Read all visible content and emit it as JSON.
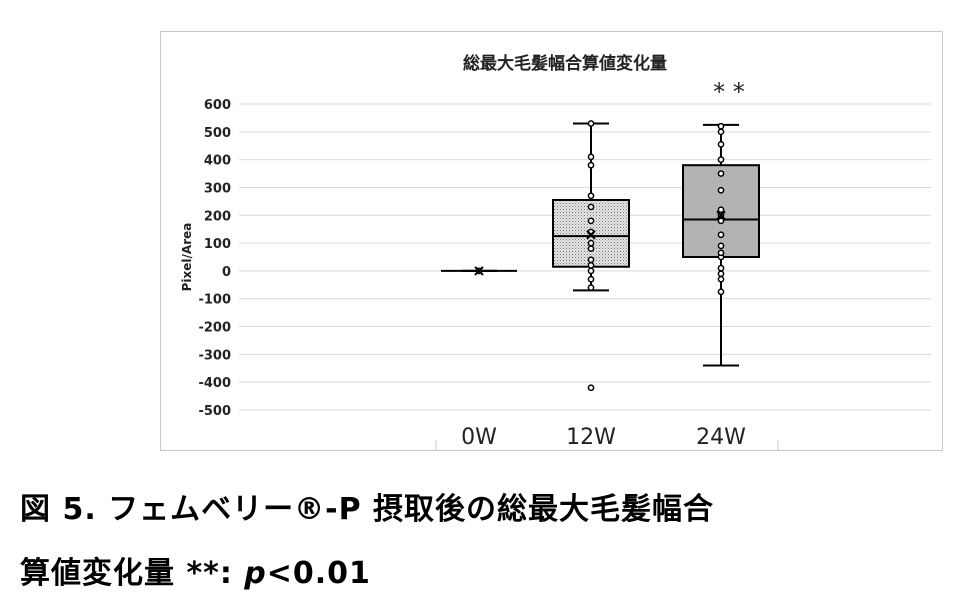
{
  "figure": {
    "caption_line1": "図 5. フェムベリー®-P 摂取後の総最大毛髪幅合",
    "caption_line2_prefix": "算値変化量 **: ",
    "caption_line2_p": "p",
    "caption_line2_suffix": "<0.01"
  },
  "chart_data": {
    "type": "boxplot",
    "title": "総最大毛髪幅合算値変化量",
    "ylabel": "Pixel/Area",
    "xlabel": "",
    "ylim": [
      -500,
      600
    ],
    "yticks": [
      600,
      500,
      400,
      300,
      200,
      100,
      0,
      -100,
      -200,
      -300,
      -400,
      -500
    ],
    "grid": true,
    "categories": [
      "0W",
      "12W",
      "24W"
    ],
    "boxes": [
      {
        "category": "0W",
        "min": 0,
        "q1": 0,
        "median": 0,
        "q3": 0,
        "max": 0,
        "mean": 0,
        "points": [
          0
        ],
        "outliers": [],
        "fill": "none",
        "annotation": ""
      },
      {
        "category": "12W",
        "min": -70,
        "q1": 15,
        "median": 125,
        "q3": 255,
        "max": 530,
        "mean": 130,
        "points": [
          -60,
          -30,
          0,
          20,
          40,
          80,
          100,
          140,
          180,
          230,
          270,
          380,
          410,
          530
        ],
        "outliers": [
          -420
        ],
        "fill": "dotted-light",
        "annotation": ""
      },
      {
        "category": "24W",
        "min": -340,
        "q1": 50,
        "median": 185,
        "q3": 380,
        "max": 525,
        "mean": 200,
        "points": [
          -75,
          -30,
          -10,
          10,
          50,
          65,
          90,
          130,
          180,
          200,
          220,
          290,
          350,
          400,
          455,
          500,
          520
        ],
        "outliers": [],
        "fill": "gray",
        "annotation": "**"
      }
    ]
  }
}
